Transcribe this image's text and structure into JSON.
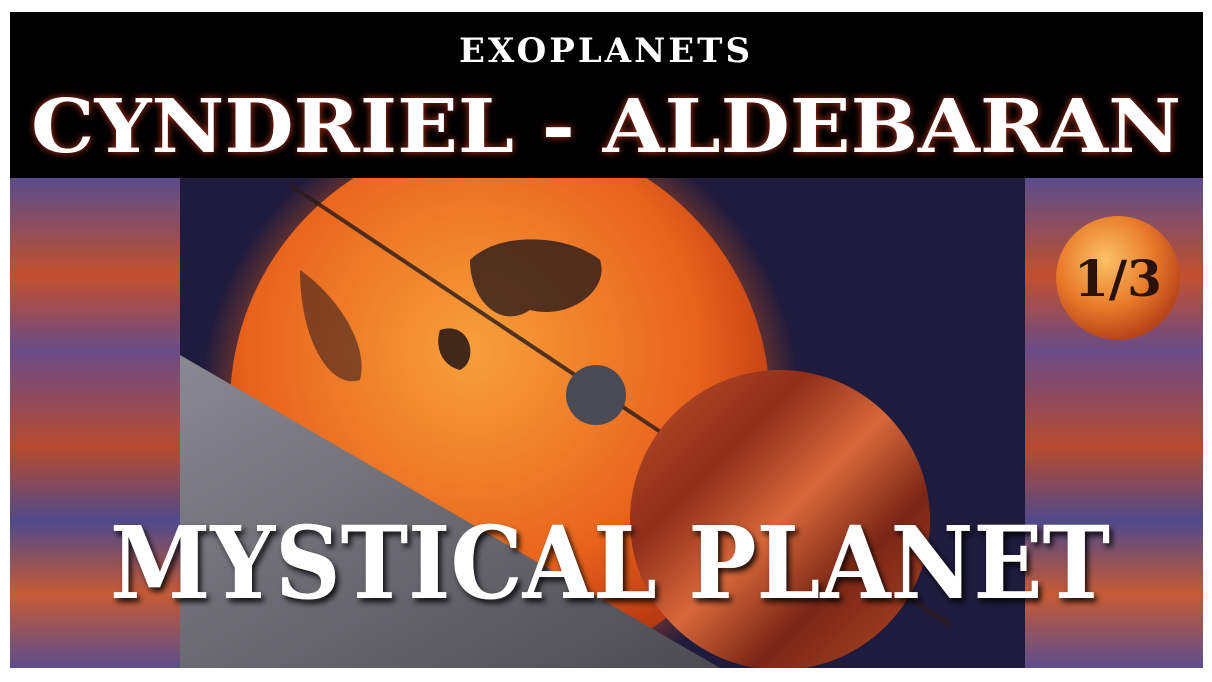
{
  "header": {
    "kicker": "EXOPLANETS",
    "title": "CYNDRIEL - ALDEBARAN"
  },
  "badge": "1/3",
  "headline": "MYSTICAL PLANET"
}
